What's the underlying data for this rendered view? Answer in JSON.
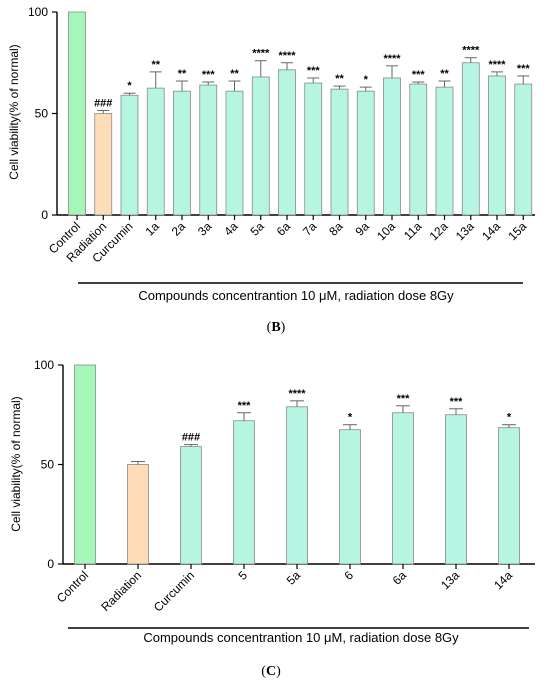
{
  "chart_data": [
    {
      "type": "bar",
      "panel_label_open": "(",
      "panel_label_letter": "B",
      "panel_label_close": ")",
      "ylabel": "Cell viability(% of normal)",
      "xlabel": "Compounds concentrantion 10 μM, radiation dose 8Gy",
      "ylim": [
        0,
        100
      ],
      "yticks": [
        0,
        50,
        100
      ],
      "categories": [
        "Control",
        "Radiation",
        "Curcumin",
        "1a",
        "2a",
        "3a",
        "4a",
        "5a",
        "6a",
        "7a",
        "8a",
        "9a",
        "10a",
        "11a",
        "12a",
        "13a",
        "14a",
        "15a"
      ],
      "values": [
        100,
        50,
        59,
        62.5,
        61,
        64,
        61,
        68,
        71.5,
        65,
        62,
        61,
        67.5,
        64.5,
        63,
        75,
        68.5,
        64.5
      ],
      "errors": [
        0,
        1.5,
        1,
        8,
        5,
        1.5,
        5,
        8,
        3.5,
        2.5,
        1.5,
        2,
        6,
        1,
        3,
        2.5,
        2,
        4
      ],
      "significance": [
        "",
        "###",
        "*",
        "**",
        "**",
        "***",
        "**",
        "****",
        "****",
        "***",
        "**",
        "*",
        "****",
        "***",
        "**",
        "****",
        "****",
        "***"
      ],
      "colors": [
        "#a6f5b9",
        "#fedcb8",
        "#b6f5e1",
        "#b6f5e1",
        "#b6f5e1",
        "#b6f5e1",
        "#b6f5e1",
        "#b6f5e1",
        "#b6f5e1",
        "#b6f5e1",
        "#b6f5e1",
        "#b6f5e1",
        "#b6f5e1",
        "#b6f5e1",
        "#b6f5e1",
        "#b6f5e1",
        "#b6f5e1",
        "#b6f5e1"
      ],
      "grid": false
    },
    {
      "type": "bar",
      "panel_label_open": "(",
      "panel_label_letter": "C",
      "panel_label_close": ")",
      "ylabel": "Cell viability(% of normal)",
      "xlabel": "Compounds concentrantion 10 μM, radiation dose 8Gy",
      "ylim": [
        0,
        100
      ],
      "yticks": [
        0,
        50,
        100
      ],
      "categories": [
        "Control",
        "Radiation",
        "Curcumin",
        "5",
        "5a",
        "6",
        "6a",
        "13a",
        "14a"
      ],
      "values": [
        100,
        50,
        59,
        72,
        79,
        67.5,
        76,
        75,
        68.5
      ],
      "errors": [
        0,
        1.5,
        1,
        4,
        3,
        2.5,
        3.5,
        3,
        1.5
      ],
      "significance": [
        "",
        "",
        "###",
        "***",
        "****",
        "*",
        "***",
        "***",
        "*"
      ],
      "colors": [
        "#a6f5b9",
        "#fedcb8",
        "#b6f5e1",
        "#b6f5e1",
        "#b6f5e1",
        "#b6f5e1",
        "#b6f5e1",
        "#b6f5e1",
        "#b6f5e1"
      ],
      "grid": false
    }
  ]
}
